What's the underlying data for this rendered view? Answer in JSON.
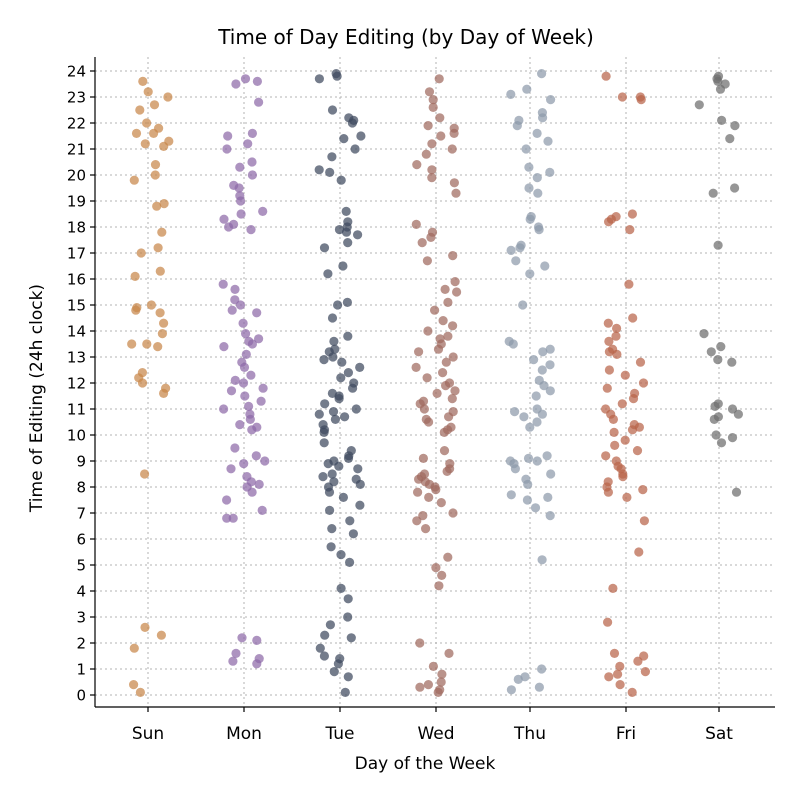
{
  "chart_data": {
    "type": "scatter",
    "title": "Time of Day Editing (by Day of Week)",
    "xlabel": "Day of the Week",
    "ylabel": "Time of Editing (24h clock)",
    "categories": [
      "Sun",
      "Mon",
      "Tue",
      "Wed",
      "Thu",
      "Fri",
      "Sat"
    ],
    "ylim": [
      -0.5,
      24.5
    ],
    "yticks": [
      0,
      1,
      2,
      3,
      4,
      5,
      6,
      7,
      8,
      9,
      10,
      11,
      12,
      13,
      14,
      15,
      16,
      17,
      18,
      19,
      20,
      21,
      22,
      23,
      24
    ],
    "grid": true,
    "jitter": "horizontal strip jitter within each day",
    "colors": {
      "Sun": "#c8874a",
      "Mon": "#8d6aa8",
      "Tue": "#3e4a5e",
      "Wed": "#a06a5e",
      "Thu": "#8e9aab",
      "Fri": "#b8644a",
      "Sat": "#6e6e6e"
    },
    "series": [
      {
        "name": "Sun",
        "values": [
          22.7,
          22.5,
          21.6,
          21.3,
          20.4,
          20.0,
          19.8,
          18.9,
          18.8,
          17.8,
          17.2,
          17.0,
          16.3,
          16.1,
          15.0,
          14.9,
          14.8,
          14.7,
          14.3,
          13.9,
          13.5,
          13.5,
          13.4,
          12.4,
          12.2,
          12.0,
          11.8,
          11.6,
          8.5,
          2.6,
          2.3,
          1.8,
          0.4,
          0.1,
          23.6,
          23.2,
          23.0,
          22.0,
          21.8,
          21.6,
          21.2,
          21.1
        ]
      },
      {
        "name": "Mon",
        "values": [
          23.6,
          23.5,
          23.7,
          22.8,
          21.6,
          21.5,
          21.2,
          21.0,
          20.5,
          20.3,
          20.0,
          19.6,
          19.5,
          19.2,
          19.0,
          18.6,
          18.5,
          18.3,
          18.1,
          18.0,
          17.9,
          15.8,
          15.6,
          15.2,
          15.0,
          14.8,
          14.7,
          14.3,
          13.9,
          13.7,
          13.6,
          13.5,
          13.4,
          13.1,
          12.8,
          12.6,
          12.3,
          12.1,
          12.0,
          11.8,
          11.7,
          11.5,
          11.3,
          11.1,
          11.0,
          10.8,
          10.6,
          10.4,
          10.3,
          10.2,
          9.5,
          9.2,
          9.0,
          8.9,
          8.7,
          8.4,
          8.2,
          8.1,
          8.0,
          7.8,
          7.5,
          7.1,
          6.8,
          6.8,
          2.2,
          2.1,
          1.6,
          1.4,
          1.3,
          1.2
        ]
      },
      {
        "name": "Tue",
        "values": [
          23.9,
          23.8,
          23.7,
          22.5,
          22.2,
          22.1,
          22.0,
          21.5,
          21.4,
          21.0,
          20.7,
          20.2,
          20.1,
          19.8,
          18.6,
          18.2,
          18.0,
          17.9,
          17.8,
          17.7,
          17.4,
          17.2,
          16.5,
          16.2,
          15.1,
          15.0,
          14.5,
          13.8,
          13.6,
          13.3,
          13.2,
          13.0,
          12.9,
          12.8,
          12.6,
          12.4,
          12.2,
          12.0,
          11.8,
          11.6,
          11.5,
          11.4,
          11.2,
          11.0,
          10.9,
          10.8,
          10.7,
          10.6,
          10.4,
          10.2,
          10.1,
          9.7,
          9.4,
          9.2,
          9.1,
          9.0,
          8.9,
          8.8,
          8.7,
          8.5,
          8.4,
          8.3,
          8.2,
          8.1,
          8.0,
          7.8,
          7.6,
          7.3,
          7.1,
          6.7,
          6.4,
          6.2,
          5.7,
          5.4,
          5.1,
          4.1,
          3.7,
          3.0,
          2.7,
          2.3,
          2.2,
          1.8,
          1.5,
          1.4,
          1.2,
          0.9,
          0.7,
          0.1
        ]
      },
      {
        "name": "Wed",
        "values": [
          23.7,
          23.2,
          22.9,
          22.6,
          22.2,
          21.9,
          21.8,
          21.6,
          21.5,
          21.2,
          21.0,
          20.8,
          20.4,
          20.2,
          19.9,
          19.7,
          19.3,
          18.1,
          17.8,
          17.6,
          17.4,
          16.9,
          16.7,
          15.9,
          15.6,
          15.5,
          15.1,
          14.8,
          14.4,
          14.2,
          14.0,
          13.8,
          13.7,
          13.5,
          13.3,
          13.2,
          13.0,
          12.8,
          12.6,
          12.4,
          12.2,
          12.0,
          11.9,
          11.7,
          11.6,
          11.4,
          11.3,
          11.2,
          11.0,
          10.9,
          10.7,
          10.6,
          10.5,
          10.3,
          10.2,
          10.1,
          9.4,
          9.1,
          8.9,
          8.7,
          8.6,
          8.5,
          8.4,
          8.3,
          8.2,
          8.1,
          8.0,
          7.9,
          7.8,
          7.6,
          7.4,
          7.0,
          6.9,
          6.7,
          6.4,
          5.3,
          4.9,
          4.6,
          4.2,
          2.0,
          1.6,
          1.1,
          0.8,
          0.5,
          0.4,
          0.3,
          0.2,
          0.1
        ]
      },
      {
        "name": "Thu",
        "values": [
          23.9,
          23.3,
          23.1,
          22.9,
          22.4,
          22.2,
          22.1,
          21.9,
          21.6,
          21.3,
          21.0,
          20.3,
          20.1,
          19.9,
          19.5,
          19.3,
          18.4,
          18.3,
          18.0,
          17.9,
          17.3,
          17.2,
          17.1,
          16.7,
          16.5,
          16.2,
          15.0,
          13.6,
          13.5,
          13.3,
          13.2,
          12.9,
          12.7,
          12.5,
          12.1,
          11.9,
          11.7,
          11.5,
          11.0,
          10.9,
          10.8,
          10.7,
          10.5,
          10.3,
          9.2,
          9.1,
          9.0,
          9.0,
          8.9,
          8.7,
          8.5,
          8.3,
          8.1,
          7.7,
          7.6,
          7.5,
          7.2,
          6.9,
          5.2,
          1.0,
          0.7,
          0.6,
          0.3,
          0.2
        ]
      },
      {
        "name": "Fri",
        "values": [
          23.8,
          23.0,
          23.0,
          22.9,
          18.5,
          18.4,
          18.3,
          18.2,
          17.9,
          15.8,
          14.5,
          14.3,
          14.1,
          13.8,
          13.6,
          13.3,
          13.2,
          13.1,
          12.8,
          12.5,
          12.3,
          12.0,
          11.8,
          11.6,
          11.4,
          11.2,
          11.0,
          10.8,
          10.6,
          10.4,
          10.3,
          10.2,
          10.1,
          9.8,
          9.6,
          9.4,
          9.2,
          9.0,
          8.8,
          8.7,
          8.5,
          8.4,
          8.2,
          8.0,
          7.9,
          7.8,
          7.6,
          6.7,
          5.5,
          4.1,
          2.8,
          1.6,
          1.5,
          1.3,
          1.1,
          0.9,
          0.8,
          0.7,
          0.4,
          0.1
        ]
      },
      {
        "name": "Sat",
        "values": [
          23.8,
          23.7,
          23.6,
          23.5,
          23.3,
          22.7,
          22.1,
          21.9,
          21.4,
          19.5,
          19.3,
          17.3,
          13.9,
          13.4,
          13.2,
          12.9,
          12.8,
          11.2,
          11.1,
          11.0,
          10.8,
          10.7,
          10.6,
          10.0,
          9.9,
          9.7,
          7.8
        ]
      }
    ]
  }
}
